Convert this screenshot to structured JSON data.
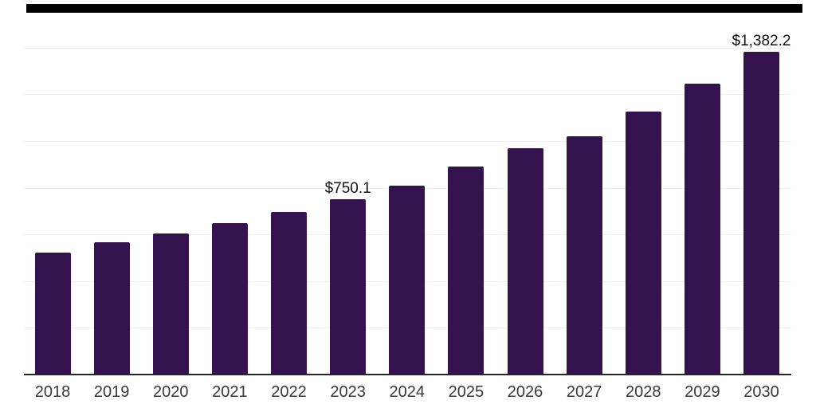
{
  "chart_data": {
    "type": "bar",
    "title": "",
    "categories": [
      "2018",
      "2019",
      "2020",
      "2021",
      "2022",
      "2023",
      "2024",
      "2025",
      "2026",
      "2027",
      "2028",
      "2029",
      "2030"
    ],
    "values": [
      521,
      566,
      604,
      648,
      696,
      750.1,
      808,
      890,
      969,
      1020,
      1125,
      1244,
      1382.2
    ],
    "data_labels": [
      {
        "category": "2023",
        "text": "$750.1"
      },
      {
        "category": "2030",
        "text": "$1,382.2"
      }
    ],
    "xlabel": "",
    "ylabel": "",
    "ylim": [
      0,
      1600
    ],
    "gridline_step": 200,
    "grid": "horizontal-faint",
    "legend": "none",
    "y_tick_labels_visible": false
  },
  "colors": {
    "background": "#ffffff",
    "bar": "#33124d",
    "gridline": "#f0f0f1",
    "axis": "#262626",
    "tick_text": "#383838",
    "data_label_text": "#121212",
    "redaction_bar": "#000000"
  },
  "header": {
    "redacted_title_bar": ""
  }
}
